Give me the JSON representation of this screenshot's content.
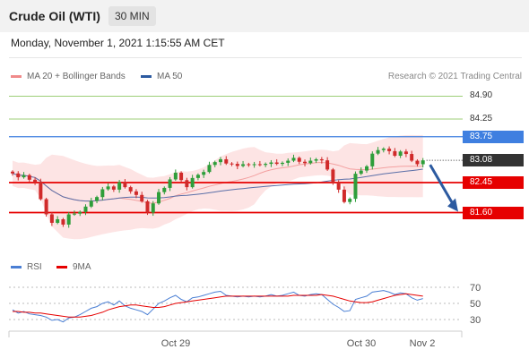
{
  "header": {
    "title": "Crude Oil (WTI)",
    "timeframe": "30 MIN"
  },
  "datetime": "Monday, November 1, 2021 1:15:55 AM CET",
  "legend": {
    "ma20": {
      "label": "MA 20 + Bollinger Bands",
      "color": "#f08a8a"
    },
    "ma50": {
      "label": "MA 50",
      "color": "#2c5aa0"
    }
  },
  "copyright": "Research © 2021 Trading Central",
  "rsi_legend": {
    "rsi": {
      "label": "RSI",
      "color": "#4a7fd4"
    },
    "ma9": {
      "label": "9MA",
      "color": "#e60000"
    }
  },
  "chart_data": [
    {
      "type": "candlestick",
      "ylim": [
        80.7,
        85.3
      ],
      "x_ticks": [
        "Oct 29",
        "Oct 30",
        "Nov 2"
      ],
      "price_levels": [
        {
          "value": "84.90",
          "kind": "target",
          "color": "#7cbf4a"
        },
        {
          "value": "84.25",
          "kind": "target",
          "color": "#7cbf4a"
        },
        {
          "value": "83.75",
          "kind": "resistance",
          "color": "#3f7fe0"
        },
        {
          "value": "83.08",
          "kind": "last",
          "color": "#333333"
        },
        {
          "value": "82.45",
          "kind": "support",
          "color": "#e60000"
        },
        {
          "value": "81.60",
          "kind": "support",
          "color": "#e60000"
        }
      ],
      "forecast_arrow": {
        "from": 83.08,
        "to": 81.6,
        "direction": "down",
        "color": "#2c5aa0"
      },
      "close_series": [
        82.71,
        82.6,
        82.66,
        82.53,
        82.47,
        81.98,
        81.55,
        81.31,
        81.41,
        81.26,
        81.55,
        81.57,
        81.62,
        81.77,
        81.93,
        82.04,
        82.26,
        82.34,
        82.25,
        82.46,
        82.32,
        82.2,
        82.1,
        81.92,
        81.6,
        81.86,
        82.18,
        82.3,
        82.54,
        82.73,
        82.52,
        82.32,
        82.58,
        82.67,
        82.75,
        82.95,
        83.03,
        83.11,
        82.99,
        82.98,
        82.92,
        82.97,
        82.96,
        82.97,
        82.95,
        82.98,
        83.02,
        82.98,
        83.01,
        83.07,
        83.15,
        83.04,
        83.0,
        83.07,
        83.11,
        83.08,
        82.82,
        82.45,
        82.25,
        81.9,
        81.99,
        82.7,
        82.79,
        82.91,
        83.27,
        83.37,
        83.41,
        83.34,
        83.21,
        83.33,
        83.26,
        83.07,
        82.97,
        83.08
      ]
    },
    {
      "type": "line",
      "title": "RSI",
      "ylim": [
        20,
        80
      ],
      "y_ticks": [
        "70",
        "50",
        "30"
      ],
      "series": [
        {
          "name": "RSI",
          "color": "#4a7fd4",
          "values": [
            42,
            38,
            40,
            37,
            36,
            35,
            33,
            29,
            30,
            27,
            32,
            33,
            36,
            40,
            44,
            46,
            50,
            52,
            48,
            53,
            47,
            44,
            42,
            40,
            36,
            43,
            50,
            53,
            57,
            60,
            55,
            52,
            57,
            58,
            60,
            62,
            64,
            65,
            60,
            59,
            58,
            59,
            58,
            59,
            58,
            59,
            61,
            59,
            60,
            62,
            64,
            60,
            59,
            61,
            62,
            61,
            55,
            49,
            45,
            40,
            41,
            55,
            57,
            59,
            64,
            65,
            66,
            64,
            61,
            63,
            62,
            57,
            54,
            56
          ]
        },
        {
          "name": "9MA",
          "color": "#e60000",
          "values": [
            40,
            40,
            39,
            39,
            38,
            38,
            37,
            36,
            35,
            34,
            33,
            33,
            33,
            34,
            35,
            37,
            39,
            42,
            44,
            46,
            47,
            48,
            48,
            47,
            46,
            45,
            45,
            46,
            48,
            50,
            51,
            52,
            53,
            54,
            55,
            56,
            57,
            58,
            59,
            59,
            59,
            59,
            59,
            59,
            59,
            59,
            59,
            59,
            59,
            59,
            60,
            60,
            60,
            60,
            60,
            61,
            60,
            59,
            57,
            55,
            53,
            52,
            51,
            51,
            52,
            54,
            56,
            58,
            60,
            61,
            62,
            61,
            60,
            59
          ]
        }
      ]
    }
  ]
}
